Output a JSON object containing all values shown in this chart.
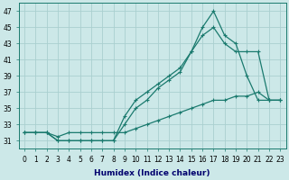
{
  "x": [
    0,
    1,
    2,
    3,
    4,
    5,
    6,
    7,
    8,
    9,
    10,
    11,
    12,
    13,
    14,
    15,
    16,
    17,
    18,
    19,
    20,
    21,
    22,
    23
  ],
  "line1": [
    32,
    32,
    32,
    31.5,
    32,
    32,
    32,
    32,
    32,
    32,
    32.5,
    33,
    33.5,
    34,
    34.5,
    35,
    35.5,
    36,
    36,
    36.5,
    36.5,
    37,
    36,
    36
  ],
  "line2": [
    32,
    32,
    32,
    31,
    31,
    31,
    31,
    31,
    31,
    34,
    36,
    37,
    38,
    39,
    40,
    42,
    45,
    47,
    44,
    43,
    39,
    36,
    36,
    36
  ],
  "line3": [
    32,
    32,
    32,
    31,
    31,
    31,
    31,
    31,
    31,
    33,
    35,
    36,
    37.5,
    38.5,
    39.5,
    42,
    44,
    45,
    43,
    42,
    42,
    42,
    36,
    36
  ],
  "line_color": "#1a7a6e",
  "bg_color": "#cce8e8",
  "grid_color": "#aacfcf",
  "xlabel": "Humidex (Indice chaleur)",
  "xlabel_color": "#00006e",
  "ylim": [
    30,
    48
  ],
  "xlim": [
    -0.5,
    23.5
  ],
  "yticks": [
    31,
    33,
    35,
    37,
    39,
    41,
    43,
    45,
    47
  ],
  "xticks": [
    0,
    1,
    2,
    3,
    4,
    5,
    6,
    7,
    8,
    9,
    10,
    11,
    12,
    13,
    14,
    15,
    16,
    17,
    18,
    19,
    20,
    21,
    22,
    23
  ],
  "tick_fontsize": 5.5,
  "xlabel_fontsize": 6.5
}
